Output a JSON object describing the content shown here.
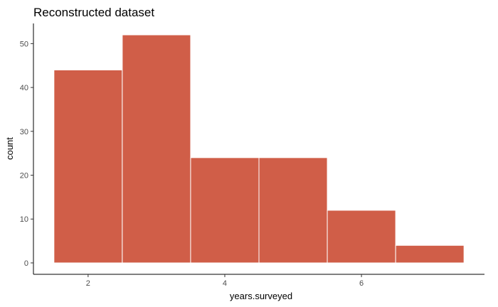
{
  "chart_data": {
    "type": "histogram",
    "title": "Reconstructed dataset",
    "xlabel": "years.surveyed",
    "ylabel": "count",
    "bins": [
      {
        "from": 1.5,
        "to": 2.5,
        "value": 44
      },
      {
        "from": 2.5,
        "to": 3.5,
        "value": 52
      },
      {
        "from": 3.5,
        "to": 4.5,
        "value": 24
      },
      {
        "from": 4.5,
        "to": 5.5,
        "value": 24
      },
      {
        "from": 5.5,
        "to": 6.5,
        "value": 12
      },
      {
        "from": 6.5,
        "to": 7.5,
        "value": 4
      }
    ],
    "xlim": [
      1.2,
      7.8
    ],
    "ylim": [
      -2.6,
      54.6
    ],
    "xticks": [
      2,
      4,
      6
    ],
    "yticks": [
      0,
      10,
      20,
      30,
      40,
      50
    ],
    "bar_fill": "#D05E48",
    "bar_outline": "#FFFFFF",
    "grid": false,
    "legend": "none"
  }
}
